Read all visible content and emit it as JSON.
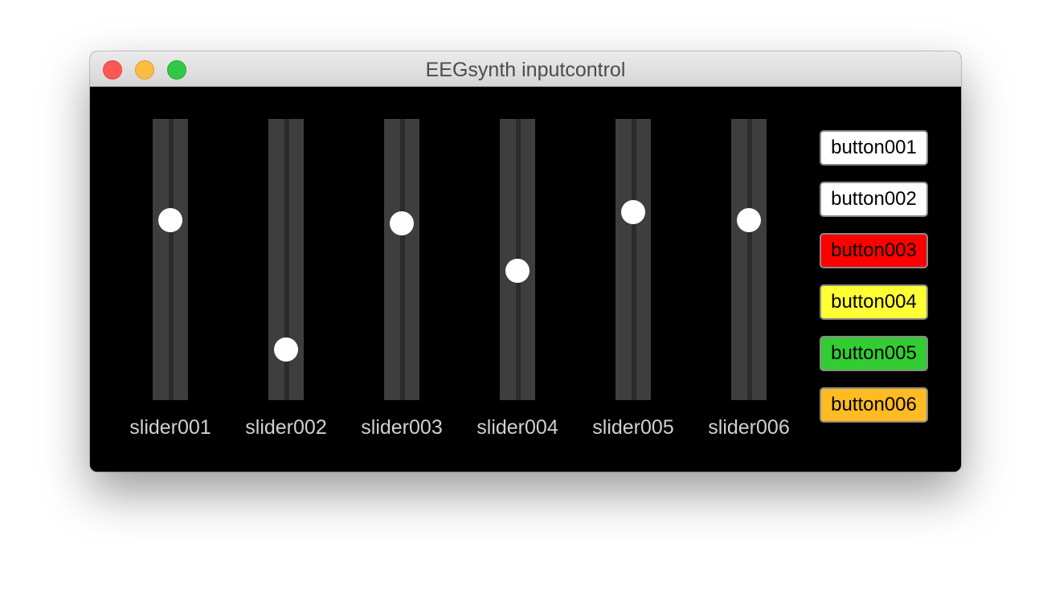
{
  "window": {
    "title": "EEGsynth inputcontrol"
  },
  "sliders": [
    {
      "label": "slider001",
      "value": 0.64
    },
    {
      "label": "slider002",
      "value": 0.18
    },
    {
      "label": "slider003",
      "value": 0.63
    },
    {
      "label": "slider004",
      "value": 0.46
    },
    {
      "label": "slider005",
      "value": 0.67
    },
    {
      "label": "slider006",
      "value": 0.64
    }
  ],
  "buttons": [
    {
      "label": "button001",
      "color": "#ffffff"
    },
    {
      "label": "button002",
      "color": "#ffffff"
    },
    {
      "label": "button003",
      "color": "#ff0000"
    },
    {
      "label": "button004",
      "color": "#ffff33"
    },
    {
      "label": "button005",
      "color": "#33cc33"
    },
    {
      "label": "button006",
      "color": "#ffbb22"
    }
  ]
}
